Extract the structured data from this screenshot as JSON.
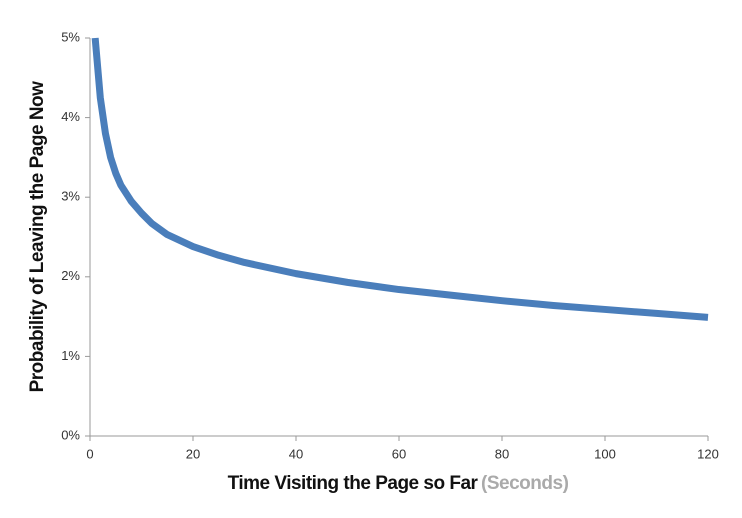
{
  "chart_data": {
    "type": "line",
    "y_label": "Probability of Leaving  the Page Now",
    "x_label": "Time Visiting the Page so Far",
    "x_label_note": "(Seconds)",
    "x": [
      1,
      2,
      3,
      4,
      5,
      6,
      8,
      10,
      12,
      15,
      20,
      25,
      30,
      40,
      50,
      60,
      70,
      80,
      90,
      100,
      110,
      120
    ],
    "series": [
      {
        "color": "#4a7ebb",
        "values": [
          5.0,
          4.25,
          3.8,
          3.5,
          3.3,
          3.15,
          2.95,
          2.8,
          2.67,
          2.53,
          2.38,
          2.27,
          2.18,
          2.04,
          1.93,
          1.84,
          1.77,
          1.7,
          1.64,
          1.59,
          1.54,
          1.49
        ]
      }
    ],
    "xlim": [
      0,
      120
    ],
    "xticks": [
      0,
      20,
      40,
      60,
      80,
      100,
      120
    ],
    "ylim": [
      0,
      5
    ],
    "yticks": [
      {
        "value": 0,
        "label": "0%"
      },
      {
        "value": 1,
        "label": "1%"
      },
      {
        "value": 2,
        "label": "2%"
      },
      {
        "value": 3,
        "label": "3%"
      },
      {
        "value": 4,
        "label": "4%"
      },
      {
        "value": 5,
        "label": "5%"
      }
    ],
    "grid": false
  }
}
